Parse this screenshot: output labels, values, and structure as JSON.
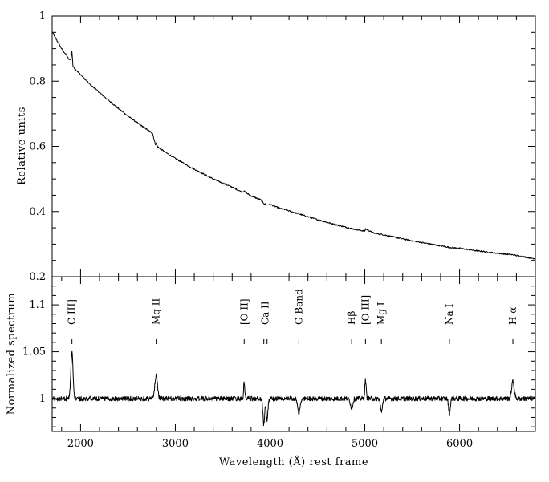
{
  "chart_data": [
    {
      "type": "line",
      "panel": "top",
      "title": "",
      "xlabel": "",
      "ylabel": "Relative units",
      "xlim": [
        1700,
        6800
      ],
      "ylim": [
        0.2,
        1.0
      ],
      "yticks": [
        0.2,
        0.4,
        0.6,
        0.8,
        1.0
      ],
      "ytick_labels": [
        "0.2",
        "0.4",
        "0.6",
        "0.8",
        "1"
      ],
      "grid": false,
      "series": [
        {
          "x": [
            1700,
            1750,
            1800,
            1850,
            1880,
            1900,
            1909,
            1920,
            1950,
            2000,
            2100,
            2200,
            2300,
            2400,
            2500,
            2600,
            2700,
            2760,
            2790,
            2800,
            2810,
            2830,
            2900,
            3000,
            3100,
            3200,
            3300,
            3400,
            3500,
            3600,
            3700,
            3727,
            3760,
            3800,
            3900,
            3934,
            3968,
            4000,
            4100,
            4200,
            4300,
            4400,
            4500,
            4600,
            4700,
            4800,
            4861,
            4900,
            5000,
            5007,
            5100,
            5175,
            5300,
            5500,
            5700,
            5893,
            6000,
            6200,
            6400,
            6563,
            6600,
            6800
          ],
          "y": [
            0.952,
            0.925,
            0.9,
            0.88,
            0.865,
            0.87,
            0.895,
            0.845,
            0.835,
            0.82,
            0.79,
            0.765,
            0.74,
            0.716,
            0.693,
            0.672,
            0.652,
            0.64,
            0.605,
            0.61,
            0.6,
            0.595,
            0.581,
            0.563,
            0.546,
            0.53,
            0.515,
            0.5,
            0.487,
            0.475,
            0.46,
            0.462,
            0.455,
            0.448,
            0.436,
            0.425,
            0.42,
            0.422,
            0.41,
            0.402,
            0.393,
            0.384,
            0.375,
            0.367,
            0.359,
            0.352,
            0.348,
            0.345,
            0.34,
            0.347,
            0.333,
            0.33,
            0.322,
            0.31,
            0.3,
            0.29,
            0.287,
            0.279,
            0.272,
            0.267,
            0.265,
            0.255
          ]
        }
      ]
    },
    {
      "type": "line",
      "panel": "bottom",
      "title": "",
      "xlabel": "Wavelength (Å) rest frame",
      "ylabel": "Normalized spectrum",
      "xlim": [
        1700,
        6800
      ],
      "ylim": [
        0.965,
        1.13
      ],
      "xticks": [
        2000,
        3000,
        4000,
        5000,
        6000
      ],
      "xtick_labels": [
        "2000",
        "3000",
        "4000",
        "5000",
        "6000"
      ],
      "yticks": [
        1.0,
        1.05,
        1.1
      ],
      "ytick_labels": [
        "1",
        "1.05",
        "1.1"
      ],
      "grid": false,
      "continuum": 1.0,
      "features": [
        {
          "name": "C III]",
          "x": 1909,
          "depth": 0.048,
          "width": 12
        },
        {
          "name": "Mg II",
          "x": 2798,
          "depth": 0.025,
          "width": 14
        },
        {
          "name": "[O II]",
          "x": 3727,
          "depth": 0.017,
          "width": 6
        },
        {
          "name": "Ca II K",
          "x": 3934,
          "depth": -0.027,
          "width": 9
        },
        {
          "name": "Ca II H",
          "x": 3968,
          "depth": -0.023,
          "width": 9
        },
        {
          "name": "G Band",
          "x": 4304,
          "depth": -0.015,
          "width": 14
        },
        {
          "name": "Hβ",
          "x": 4861,
          "depth": -0.01,
          "width": 12
        },
        {
          "name": "[O III]",
          "x": 5007,
          "depth": 0.02,
          "width": 7
        },
        {
          "name": "Mg I",
          "x": 5175,
          "depth": -0.014,
          "width": 10
        },
        {
          "name": "Na I",
          "x": 5893,
          "depth": -0.016,
          "width": 9
        },
        {
          "name": "H α",
          "x": 6563,
          "depth": 0.018,
          "width": 14
        }
      ],
      "line_labels": [
        {
          "text": "C III]",
          "x": 1909,
          "markers": [
            1909
          ]
        },
        {
          "text": "Mg II",
          "x": 2798,
          "markers": [
            2798
          ]
        },
        {
          "text": "[O II]",
          "x": 3727,
          "markers": [
            3727
          ]
        },
        {
          "text": "Ca II",
          "x": 3950,
          "markers": [
            3934,
            3968
          ]
        },
        {
          "text": "G Band",
          "x": 4304,
          "markers": [
            4304
          ]
        },
        {
          "text": "Hβ",
          "x": 4861,
          "markers": [
            4861
          ]
        },
        {
          "text": "[O III]",
          "x": 5007,
          "markers": [
            5007
          ]
        },
        {
          "text": "Mg I",
          "x": 5175,
          "markers": [
            5175
          ]
        },
        {
          "text": "Na I",
          "x": 5893,
          "markers": [
            5893
          ]
        },
        {
          "text": "H α",
          "x": 6563,
          "markers": [
            6563
          ]
        }
      ]
    }
  ]
}
